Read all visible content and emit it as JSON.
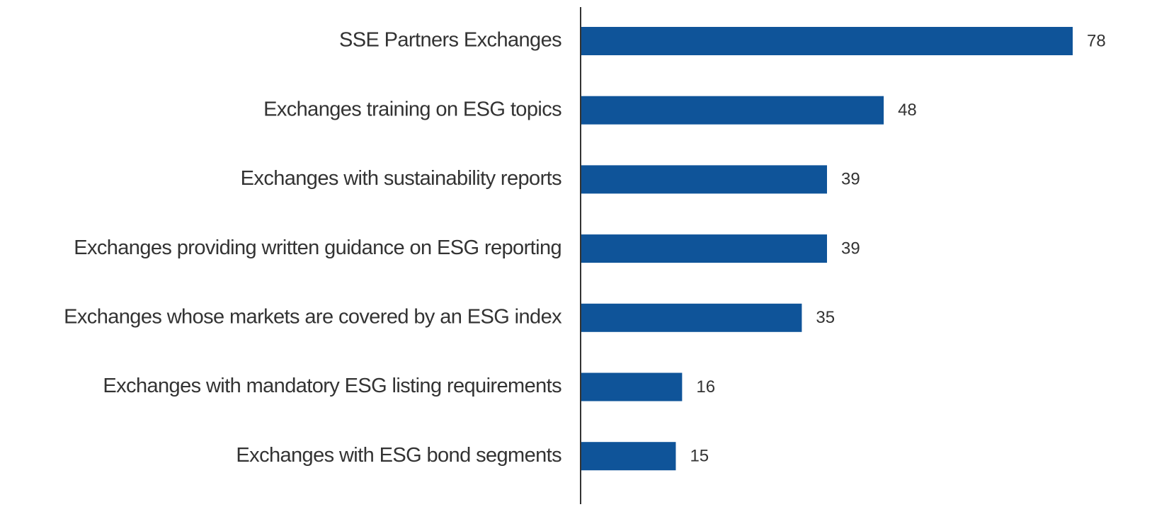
{
  "chart_data": {
    "type": "hbar",
    "categories": [
      "SSE Partners Exchanges",
      "Exchanges training on ESG topics",
      "Exchanges with sustainability reports",
      "Exchanges providing written guidance on ESG reporting",
      "Exchanges whose markets are covered by an ESG index",
      "Exchanges with mandatory ESG listing requirements",
      "Exchanges with ESG bond segments"
    ],
    "values": [
      78,
      48,
      39,
      39,
      35,
      16,
      15
    ],
    "color": "#0f5499"
  }
}
